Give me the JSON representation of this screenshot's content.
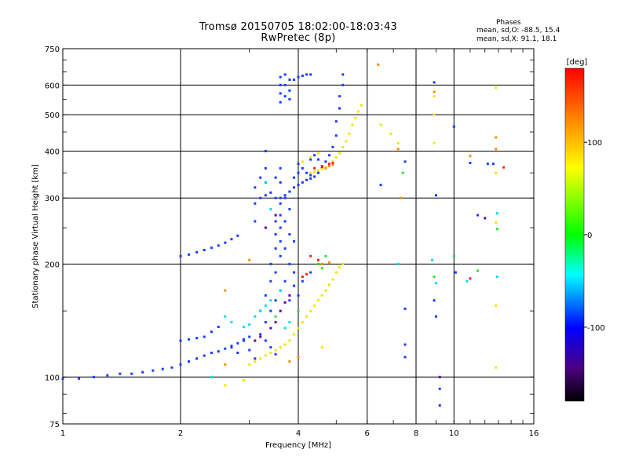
{
  "header": {
    "title": "Tromsø 20150705 18:02:00-18:03:43",
    "subtitle": "RwPretec (8p)"
  },
  "phases": {
    "title": "Phases",
    "o_line": "mean, sd,O: -88.5, 15.4",
    "x_line": "mean, sd,X:  91.1, 18.1"
  },
  "chart_data": {
    "type": "scatter",
    "title": "Tromsø 20150705 18:02:00-18:03:43",
    "subtitle": "RwPretec (8p)",
    "xlabel": "Frequency [MHz]",
    "ylabel": "Stationary phase Virtual Height [km]",
    "x_scale": "log",
    "y_scale": "log",
    "xlim": [
      1,
      16
    ],
    "ylim": [
      75,
      750
    ],
    "x_ticks": [
      1,
      2,
      4,
      6,
      8,
      10,
      16
    ],
    "y_ticks": [
      75,
      100,
      200,
      300,
      400,
      500,
      600,
      750
    ],
    "grid": true,
    "colorbar": {
      "label": "[deg]",
      "range": [
        -180,
        180
      ],
      "ticks": [
        100,
        0,
        -100
      ]
    },
    "series": [
      {
        "color": "#1a3cff",
        "points": [
          [
            1.0,
            99
          ],
          [
            1.1,
            99
          ],
          [
            1.2,
            100
          ],
          [
            1.3,
            101
          ],
          [
            1.4,
            102
          ],
          [
            1.5,
            102
          ],
          [
            1.6,
            103
          ],
          [
            1.7,
            104
          ],
          [
            1.8,
            105
          ],
          [
            1.9,
            106
          ],
          [
            2.0,
            108
          ],
          [
            2.1,
            110
          ],
          [
            2.2,
            112
          ],
          [
            2.3,
            114
          ],
          [
            2.4,
            116
          ],
          [
            2.5,
            117
          ],
          [
            2.6,
            119
          ],
          [
            2.7,
            121
          ],
          [
            2.8,
            123
          ],
          [
            2.9,
            126
          ],
          [
            3.0,
            128
          ],
          [
            2.0,
            210
          ],
          [
            2.1,
            212
          ],
          [
            2.2,
            215
          ],
          [
            2.3,
            218
          ],
          [
            2.4,
            221
          ],
          [
            2.5,
            224
          ],
          [
            2.6,
            228
          ],
          [
            2.7,
            233
          ],
          [
            2.8,
            238
          ],
          [
            2.0,
            125
          ],
          [
            2.1,
            126
          ],
          [
            2.2,
            127
          ],
          [
            2.3,
            128
          ],
          [
            2.4,
            132
          ],
          [
            2.5,
            136
          ],
          [
            3.1,
            260
          ],
          [
            3.1,
            290
          ],
          [
            3.1,
            320
          ],
          [
            3.2,
            300
          ],
          [
            3.2,
            340
          ],
          [
            3.3,
            305
          ],
          [
            3.3,
            330
          ],
          [
            3.3,
            360
          ],
          [
            3.3,
            400
          ],
          [
            3.4,
            310
          ],
          [
            3.5,
            300
          ],
          [
            3.5,
            340
          ],
          [
            3.6,
            330
          ],
          [
            3.6,
            360
          ],
          [
            3.6,
            540
          ],
          [
            3.6,
            570
          ],
          [
            3.6,
            600
          ],
          [
            3.6,
            630
          ],
          [
            3.7,
            560
          ],
          [
            3.7,
            600
          ],
          [
            3.7,
            640
          ],
          [
            3.8,
            550
          ],
          [
            3.8,
            580
          ],
          [
            3.8,
            620
          ],
          [
            3.9,
            620
          ],
          [
            4.0,
            630
          ],
          [
            4.1,
            635
          ],
          [
            4.2,
            640
          ],
          [
            4.3,
            640
          ],
          [
            3.2,
            130
          ],
          [
            3.2,
            150
          ],
          [
            3.3,
            140
          ],
          [
            3.3,
            165
          ],
          [
            3.4,
            150
          ],
          [
            3.4,
            180
          ],
          [
            3.4,
            200
          ],
          [
            3.5,
            160
          ],
          [
            3.5,
            190
          ],
          [
            3.5,
            220
          ],
          [
            3.5,
            240
          ],
          [
            3.5,
            260
          ],
          [
            3.6,
            170
          ],
          [
            3.6,
            210
          ],
          [
            3.6,
            230
          ],
          [
            3.6,
            250
          ],
          [
            3.6,
            270
          ],
          [
            3.6,
            290
          ],
          [
            3.7,
            180
          ],
          [
            3.7,
            220
          ],
          [
            3.7,
            260
          ],
          [
            3.7,
            300
          ],
          [
            3.8,
            160
          ],
          [
            3.8,
            200
          ],
          [
            3.8,
            240
          ],
          [
            3.8,
            280
          ],
          [
            3.9,
            190
          ],
          [
            3.9,
            230
          ],
          [
            3.6,
            300
          ],
          [
            3.7,
            305
          ],
          [
            3.8,
            312
          ],
          [
            3.9,
            320
          ],
          [
            4.0,
            325
          ],
          [
            4.1,
            330
          ],
          [
            4.2,
            335
          ],
          [
            4.3,
            338
          ],
          [
            4.4,
            342
          ],
          [
            4.5,
            350
          ],
          [
            4.6,
            360
          ],
          [
            4.7,
            375
          ],
          [
            4.8,
            390
          ],
          [
            4.9,
            410
          ],
          [
            5.0,
            440
          ],
          [
            5.0,
            480
          ],
          [
            5.1,
            520
          ],
          [
            5.1,
            560
          ],
          [
            5.2,
            600
          ],
          [
            5.2,
            640
          ],
          [
            3.9,
            340
          ],
          [
            4.0,
            350
          ],
          [
            4.0,
            370
          ],
          [
            4.1,
            360
          ],
          [
            4.2,
            350
          ],
          [
            4.3,
            345
          ],
          [
            4.3,
            380
          ],
          [
            4.4,
            390
          ],
          [
            4.5,
            380
          ],
          [
            2.7,
            120
          ],
          [
            2.8,
            116
          ],
          [
            2.9,
            125
          ],
          [
            3.0,
            118
          ],
          [
            3.1,
            112
          ],
          [
            3.3,
            125
          ],
          [
            3.4,
            120
          ],
          [
            3.5,
            115
          ],
          [
            3.9,
            175
          ],
          [
            4.0,
            165
          ],
          [
            4.1,
            180
          ],
          [
            4.3,
            190
          ],
          [
            8.9,
            610
          ],
          [
            10.0,
            465
          ],
          [
            9.0,
            305
          ],
          [
            11.0,
            372
          ],
          [
            12.2,
            370
          ],
          [
            12.6,
            370
          ],
          [
            11.5,
            270
          ],
          [
            10.1,
            190
          ],
          [
            7.5,
            152
          ],
          [
            7.5,
            122
          ],
          [
            7.5,
            113
          ],
          [
            8.9,
            160
          ],
          [
            9.0,
            145
          ],
          [
            9.2,
            93
          ],
          [
            9.2,
            84
          ],
          [
            6.5,
            325
          ],
          [
            7.5,
            375
          ]
        ]
      },
      {
        "color": "#f0e600",
        "points": [
          [
            3.0,
            108
          ],
          [
            3.1,
            110
          ],
          [
            3.2,
            112
          ],
          [
            3.3,
            114
          ],
          [
            3.4,
            116
          ],
          [
            3.5,
            118
          ],
          [
            3.6,
            120
          ],
          [
            3.7,
            122
          ],
          [
            3.8,
            125
          ],
          [
            3.9,
            130
          ],
          [
            4.0,
            135
          ],
          [
            4.1,
            140
          ],
          [
            4.2,
            145
          ],
          [
            4.3,
            150
          ],
          [
            4.4,
            155
          ],
          [
            4.5,
            160
          ],
          [
            4.6,
            165
          ],
          [
            4.7,
            170
          ],
          [
            4.8,
            176
          ],
          [
            4.9,
            182
          ],
          [
            5.0,
            190
          ],
          [
            5.1,
            196
          ],
          [
            5.2,
            200
          ],
          [
            4.3,
            350
          ],
          [
            4.4,
            352
          ],
          [
            4.5,
            355
          ],
          [
            4.6,
            358
          ],
          [
            4.7,
            362
          ],
          [
            4.8,
            368
          ],
          [
            4.9,
            375
          ],
          [
            5.0,
            385
          ],
          [
            5.1,
            395
          ],
          [
            5.2,
            410
          ],
          [
            5.3,
            425
          ],
          [
            5.4,
            445
          ],
          [
            5.5,
            470
          ],
          [
            5.6,
            490
          ],
          [
            5.7,
            510
          ],
          [
            5.8,
            530
          ],
          [
            4.1,
            375
          ],
          [
            4.3,
            385
          ],
          [
            4.5,
            395
          ],
          [
            2.6,
            95
          ],
          [
            2.9,
            98
          ],
          [
            4.6,
            120
          ],
          [
            6.5,
            470
          ],
          [
            6.9,
            445
          ],
          [
            7.2,
            420
          ],
          [
            12.8,
            590
          ],
          [
            12.8,
            350
          ],
          [
            12.8,
            155
          ],
          [
            12.8,
            106
          ],
          [
            12.8,
            258
          ],
          [
            8.9,
            560
          ],
          [
            8.9,
            500
          ],
          [
            8.9,
            420
          ]
        ]
      },
      {
        "color": "#ff8c00",
        "points": [
          [
            6.4,
            680
          ],
          [
            7.2,
            405
          ],
          [
            7.3,
            300
          ],
          [
            11.0,
            388
          ],
          [
            12.8,
            435
          ],
          [
            12.8,
            405
          ],
          [
            4.7,
            360
          ],
          [
            4.8,
            365
          ],
          [
            4.9,
            368
          ],
          [
            4.6,
            200
          ],
          [
            4.8,
            202
          ],
          [
            3.8,
            110
          ],
          [
            4.0,
            113
          ],
          [
            2.6,
            170
          ],
          [
            3.0,
            205
          ],
          [
            2.6,
            108
          ],
          [
            8.9,
            575
          ]
        ]
      },
      {
        "color": "#ff2020",
        "points": [
          [
            4.4,
            360
          ],
          [
            4.6,
            365
          ],
          [
            4.8,
            370
          ],
          [
            4.9,
            372
          ],
          [
            4.3,
            210
          ],
          [
            4.5,
            205
          ],
          [
            11.0,
            183
          ],
          [
            13.4,
            362
          ],
          [
            4.1,
            185
          ],
          [
            4.2,
            188
          ]
        ]
      },
      {
        "color": "#00ddee",
        "points": [
          [
            2.9,
            136
          ],
          [
            3.0,
            138
          ],
          [
            3.1,
            145
          ],
          [
            3.2,
            150
          ],
          [
            3.3,
            155
          ],
          [
            3.4,
            160
          ],
          [
            3.6,
            170
          ],
          [
            3.7,
            135
          ],
          [
            3.8,
            140
          ],
          [
            2.6,
            145
          ],
          [
            2.7,
            140
          ],
          [
            3.3,
            330
          ],
          [
            3.4,
            280
          ],
          [
            7.2,
            200
          ],
          [
            8.8,
            205
          ],
          [
            9.0,
            178
          ],
          [
            10.8,
            180
          ],
          [
            12.9,
            273
          ],
          [
            2.4,
            100
          ],
          [
            12.9,
            185
          ]
        ]
      },
      {
        "color": "#33dd33",
        "points": [
          [
            4.5,
            200
          ],
          [
            4.7,
            210
          ],
          [
            3.5,
            145
          ],
          [
            4.0,
            150
          ],
          [
            8.9,
            185
          ],
          [
            11.5,
            192
          ],
          [
            12.9,
            248
          ],
          [
            10.0,
            210
          ],
          [
            7.4,
            350
          ],
          [
            4.6,
            195
          ]
        ]
      },
      {
        "color": "#660099",
        "points": [
          [
            3.1,
            125
          ],
          [
            3.2,
            128
          ],
          [
            3.4,
            135
          ],
          [
            3.5,
            140
          ],
          [
            3.6,
            150
          ],
          [
            3.7,
            158
          ],
          [
            3.8,
            165
          ],
          [
            3.3,
            250
          ],
          [
            3.5,
            270
          ],
          [
            12.0,
            265
          ],
          [
            9.2,
            100
          ]
        ]
      }
    ]
  }
}
